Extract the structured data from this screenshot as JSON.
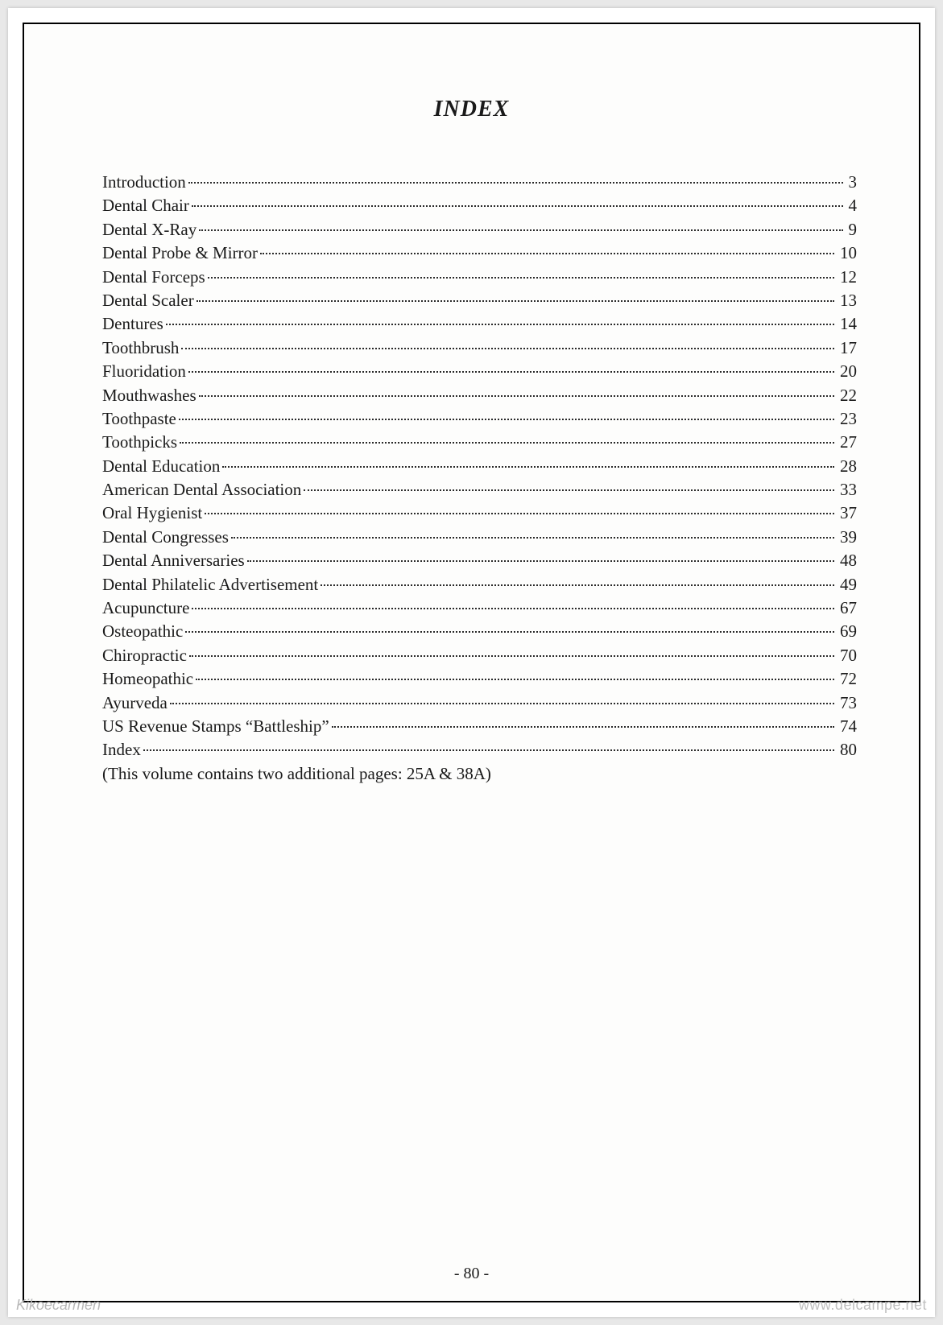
{
  "title": "INDEX",
  "entries": [
    {
      "title": "Introduction",
      "page": "3"
    },
    {
      "title": "Dental Chair",
      "page": "4"
    },
    {
      "title": "Dental X-Ray",
      "page": "9"
    },
    {
      "title": "Dental Probe & Mirror",
      "page": "10"
    },
    {
      "title": "Dental Forceps",
      "page": "12"
    },
    {
      "title": "Dental Scaler",
      "page": "13"
    },
    {
      "title": "Dentures",
      "page": "14"
    },
    {
      "title": "Toothbrush",
      "page": "17"
    },
    {
      "title": "Fluoridation",
      "page": "20"
    },
    {
      "title": "Mouthwashes",
      "page": "22"
    },
    {
      "title": "Toothpaste",
      "page": "23"
    },
    {
      "title": "Toothpicks",
      "page": "27"
    },
    {
      "title": "Dental Education",
      "page": "28"
    },
    {
      "title": "American Dental Association",
      "page": "33"
    },
    {
      "title": "Oral Hygienist",
      "page": "37"
    },
    {
      "title": "Dental Congresses",
      "page": "39"
    },
    {
      "title": "Dental Anniversaries",
      "page": "48"
    },
    {
      "title": "Dental Philatelic Advertisement",
      "page": "49"
    },
    {
      "title": "Acupuncture",
      "page": "67"
    },
    {
      "title": "Osteopathic",
      "page": "69"
    },
    {
      "title": "Chiropractic",
      "page": "70"
    },
    {
      "title": "Homeopathic",
      "page": "72"
    },
    {
      "title": "Ayurveda",
      "page": "73"
    },
    {
      "title": "US Revenue Stamps “Battleship”",
      "page": "74"
    },
    {
      "title": "Index",
      "page": "80"
    }
  ],
  "note": "(This volume contains two additional pages:  25A & 38A)",
  "page_number": "- 80 -",
  "footer_left": "Kikoecarmen",
  "footer_right": "www.delcampe.net",
  "colors": {
    "page_bg": "#ffffff",
    "outer_bg": "#e8e8e8",
    "text": "#1a1a1a",
    "watermark": "#b8b8b8",
    "border": "#000000"
  },
  "typography": {
    "body_font": "Times New Roman",
    "title_fontsize_pt": 21,
    "entry_fontsize_pt": 16,
    "title_weight": "bold",
    "title_style": "italic"
  }
}
